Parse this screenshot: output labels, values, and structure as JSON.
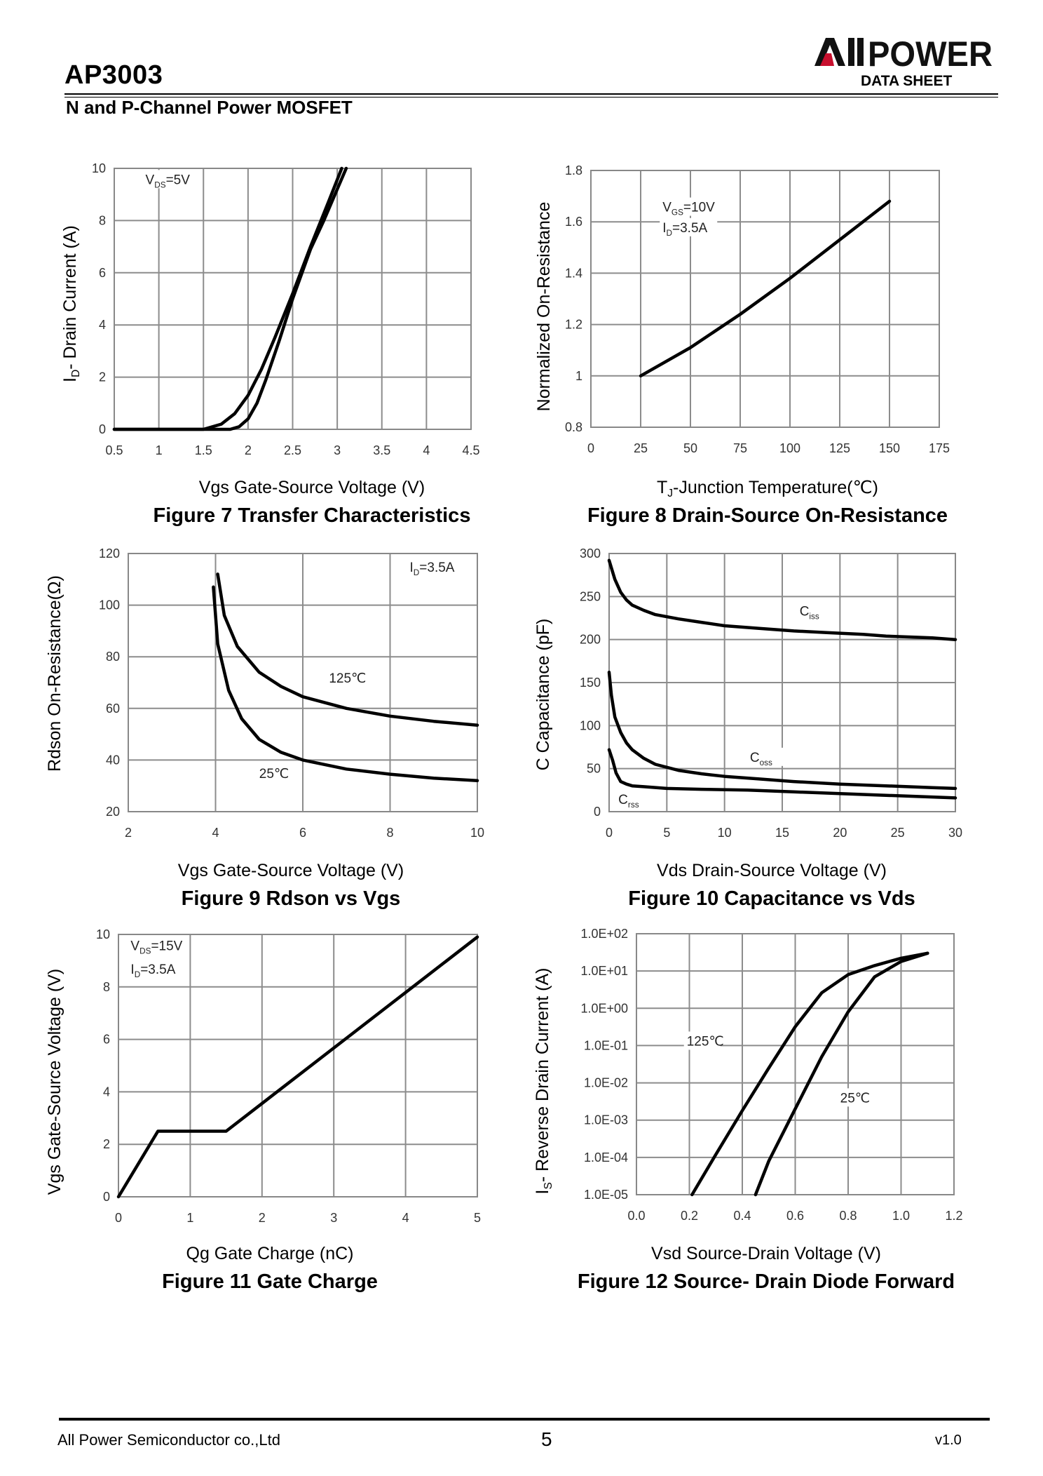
{
  "header": {
    "part_number": "AP3003",
    "subtitle": "N and P-Channel Power MOSFET",
    "logo_text": "AIIPOWER",
    "logo_caption": "DATA SHEET"
  },
  "footer": {
    "company": "All Power Semiconductor co.,Ltd",
    "page": "5",
    "version": "v1.0"
  },
  "colors": {
    "curve": "#000000",
    "grid": "#8c8c8c",
    "logo_accent": "#c8102e"
  },
  "chart_data": [
    {
      "id": "fig7",
      "type": "line",
      "title": "Figure 7 Transfer Characteristics",
      "xlabel": "Vgs Gate-Source Voltage (V)",
      "ylabel": "ID- Drain Current (A)",
      "xlim": [
        0.5,
        4.5
      ],
      "ylim": [
        0,
        10
      ],
      "xticks": [
        "0.5",
        "1",
        "1.5",
        "2",
        "2.5",
        "3",
        "3.5",
        "4",
        "4.5"
      ],
      "yticks": [
        "0",
        "2",
        "4",
        "6",
        "8",
        "10"
      ],
      "annotations": [
        {
          "text": "VDS=5V",
          "x": 0.85,
          "y": 9.4
        }
      ],
      "series": [
        {
          "x": [
            0.5,
            1.5,
            1.7,
            1.85,
            2.0,
            2.15,
            2.3,
            2.5,
            2.7,
            2.9,
            3.05
          ],
          "y": [
            0,
            0,
            0.2,
            0.6,
            1.3,
            2.3,
            3.5,
            5.2,
            7.0,
            8.7,
            10
          ]
        },
        {
          "x": [
            0.5,
            1.8,
            1.9,
            2.0,
            2.1,
            2.2,
            2.35,
            2.5,
            2.7,
            2.85,
            3.0,
            3.1
          ],
          "y": [
            0,
            0,
            0.1,
            0.4,
            1.0,
            1.9,
            3.4,
            5.0,
            6.9,
            8.0,
            9.2,
            10
          ]
        }
      ],
      "grid": true
    },
    {
      "id": "fig8",
      "type": "line",
      "title": "Figure 8 Drain-Source On-Resistance",
      "xlabel": "TJ-Junction Temperature(℃)",
      "ylabel": "Normalized On-Resistance",
      "xlim": [
        0,
        175
      ],
      "ylim": [
        0.8,
        1.8
      ],
      "xticks": [
        "0",
        "25",
        "50",
        "75",
        "100",
        "125",
        "150",
        "175"
      ],
      "yticks": [
        "0.8",
        "1",
        "1.2",
        "1.4",
        "1.6",
        "1.8"
      ],
      "annotations": [
        {
          "text": "VGS=10V",
          "x": 36,
          "y": 1.64
        },
        {
          "text": "ID=3.5A",
          "x": 36,
          "y": 1.56
        }
      ],
      "series": [
        {
          "x": [
            25,
            50,
            75,
            100,
            125,
            150
          ],
          "y": [
            1.0,
            1.11,
            1.24,
            1.38,
            1.53,
            1.68
          ]
        }
      ],
      "grid": true
    },
    {
      "id": "fig9",
      "type": "line",
      "title": "Figure 9 Rdson vs Vgs",
      "xlabel": "Vgs Gate-Source Voltage (V)",
      "ylabel": "Rdson On-Resistance(Ω)",
      "xlim": [
        2,
        10
      ],
      "ylim": [
        20,
        120
      ],
      "xticks": [
        "2",
        "4",
        "6",
        "8",
        "10"
      ],
      "yticks": [
        "20",
        "40",
        "60",
        "80",
        "100",
        "120"
      ],
      "annotations": [
        {
          "text": "ID=3.5A",
          "x": 8.45,
          "y": 113
        },
        {
          "text": "125℃",
          "x": 6.6,
          "y": 70
        },
        {
          "text": "25℃",
          "x": 5.0,
          "y": 33
        }
      ],
      "series": [
        {
          "name": "125℃",
          "x": [
            4.05,
            4.2,
            4.5,
            5.0,
            5.5,
            6.0,
            7.0,
            8.0,
            9.0,
            10.0
          ],
          "y": [
            112,
            96,
            84,
            74,
            68.5,
            64.5,
            60,
            57,
            55,
            53.5
          ]
        },
        {
          "name": "25℃",
          "x": [
            3.95,
            4.05,
            4.3,
            4.6,
            5.0,
            5.5,
            6.0,
            7.0,
            8.0,
            9.0,
            10.0
          ],
          "y": [
            107,
            85,
            67,
            56,
            48,
            43,
            40,
            36.5,
            34.5,
            33,
            32
          ]
        }
      ],
      "grid": true
    },
    {
      "id": "fig10",
      "type": "line",
      "title": "Figure 10 Capacitance vs Vds",
      "xlabel": "Vds Drain-Source Voltage (V)",
      "ylabel": "C Capacitance (pF)",
      "xlim": [
        0,
        30
      ],
      "ylim": [
        0,
        300
      ],
      "xticks": [
        "0",
        "5",
        "10",
        "15",
        "20",
        "25",
        "30"
      ],
      "yticks": [
        "0",
        "50",
        "100",
        "150",
        "200",
        "250",
        "300"
      ],
      "annotations": [
        {
          "text": "Ciss",
          "x": 16.5,
          "y": 228
        },
        {
          "text": "Coss",
          "x": 12.2,
          "y": 58
        },
        {
          "text": "Crss",
          "x": 0.8,
          "y": 9
        }
      ],
      "series": [
        {
          "name": "Ciss",
          "x": [
            0,
            0.5,
            1,
            1.5,
            2,
            3,
            4,
            6,
            8,
            10,
            13,
            16,
            19,
            22,
            24,
            26,
            28,
            30
          ],
          "y": [
            292,
            270,
            255,
            246,
            240,
            234,
            229,
            224,
            220,
            216,
            213,
            210,
            208,
            206,
            204,
            203,
            202,
            200
          ]
        },
        {
          "name": "Coss",
          "x": [
            0,
            0.2,
            0.5,
            1,
            1.5,
            2,
            3,
            4,
            6,
            8,
            10,
            13,
            16,
            20,
            24,
            28,
            30
          ],
          "y": [
            162,
            135,
            110,
            92,
            80,
            72,
            62,
            55,
            48,
            44,
            41,
            38,
            35,
            32,
            30,
            28,
            27
          ]
        },
        {
          "name": "Crss",
          "x": [
            0,
            0.3,
            0.6,
            1,
            1.5,
            2,
            3,
            5,
            8,
            12,
            16,
            20,
            24,
            28,
            30
          ],
          "y": [
            72,
            60,
            45,
            35,
            32,
            30,
            29,
            27,
            26,
            25,
            23,
            21,
            19,
            17,
            16
          ]
        }
      ],
      "grid": true
    },
    {
      "id": "fig11",
      "type": "line",
      "title": "Figure 11 Gate Charge",
      "xlabel": "Qg Gate Charge (nC)",
      "ylabel": "Vgs Gate-Source Voltage (V)",
      "xlim": [
        0,
        5
      ],
      "ylim": [
        0,
        10
      ],
      "xticks": [
        "0",
        "1",
        "2",
        "3",
        "4",
        "5"
      ],
      "yticks": [
        "0",
        "2",
        "4",
        "6",
        "8",
        "10"
      ],
      "annotations": [
        {
          "text": "VDS=15V",
          "x": 0.17,
          "y": 9.4
        },
        {
          "text": "ID=3.5A",
          "x": 0.17,
          "y": 8.5
        }
      ],
      "series": [
        {
          "x": [
            0,
            0.55,
            1.5,
            5.0
          ],
          "y": [
            0,
            2.5,
            2.5,
            9.9
          ]
        }
      ],
      "grid": true
    },
    {
      "id": "fig12",
      "type": "line",
      "title": "Figure 12 Source- Drain Diode Forward",
      "xlabel": "Vsd Source-Drain Voltage (V)",
      "ylabel": "IS- Reverse Drain Current (A)",
      "yscale": "log",
      "xlim": [
        0,
        1.2
      ],
      "ylim": [
        1e-05,
        100
      ],
      "xticks": [
        "0.0",
        "0.2",
        "0.4",
        "0.6",
        "0.8",
        "1.0",
        "1.2"
      ],
      "yticks": [
        "1.0E-05",
        "1.0E-04",
        "1.0E-03",
        "1.0E-02",
        "1.0E-01",
        "1.0E+00",
        "1.0E+01",
        "1.0E+02"
      ],
      "annotations": [
        {
          "text": "125℃",
          "x": 0.19,
          "y": 0.1
        },
        {
          "text": "25℃",
          "x": 0.77,
          "y": 0.003
        }
      ],
      "series": [
        {
          "name": "125℃",
          "x": [
            0.21,
            0.3,
            0.4,
            0.5,
            0.6,
            0.7,
            0.8,
            0.9,
            1.0,
            1.1
          ],
          "y": [
            1e-05,
            0.00012,
            0.0018,
            0.025,
            0.32,
            2.6,
            8.0,
            14.0,
            22.0,
            30.0
          ]
        },
        {
          "name": "25℃",
          "x": [
            0.45,
            0.5,
            0.6,
            0.7,
            0.8,
            0.9,
            1.0,
            1.1
          ],
          "y": [
            1e-05,
            8e-05,
            0.002,
            0.05,
            0.8,
            7.0,
            18.0,
            30.0
          ]
        }
      ],
      "grid": true
    }
  ]
}
